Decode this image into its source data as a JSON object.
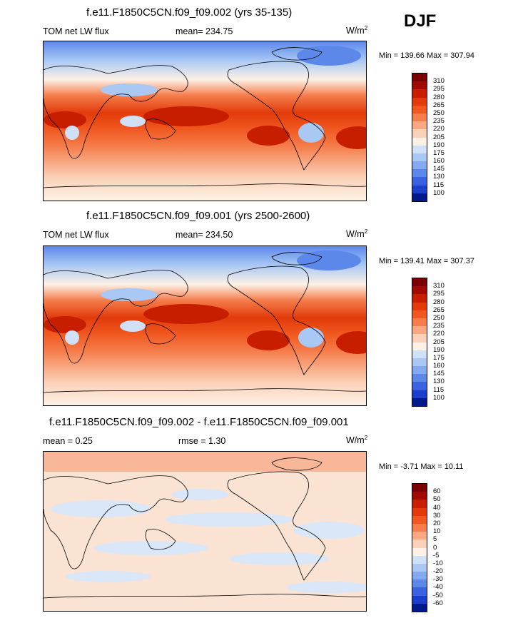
{
  "season": "DJF",
  "panels": [
    {
      "title": "f.e11.F1850C5CN.f09_f09.002 (yrs 35-135)",
      "left": "TOM net LW flux",
      "center": "mean= 234.75",
      "units_main": "W/m",
      "units_sup": "2",
      "minmax": "Min = 139.66 Max = 307.94",
      "labels": [
        "310",
        "295",
        "280",
        "265",
        "250",
        "235",
        "220",
        "205",
        "190",
        "175",
        "160",
        "145",
        "130",
        "115",
        "100"
      ],
      "colors": [
        "#7a0000",
        "#a00a00",
        "#c81e00",
        "#e23a0a",
        "#f0581f",
        "#f57d4b",
        "#f9a883",
        "#fbd2b9",
        "#fdf1e6",
        "#cfe0f7",
        "#a9c8f4",
        "#83aaf0",
        "#5c88ea",
        "#3a61e0",
        "#1b3ecb",
        "#001a8c"
      ]
    },
    {
      "title": "f.e11.F1850C5CN.f09_f09.001 (yrs 2500-2600)",
      "left": "TOM net LW flux",
      "center": "mean= 234.50",
      "units_main": "W/m",
      "units_sup": "2",
      "minmax": "Min = 139.41 Max = 307.37",
      "labels": [
        "310",
        "295",
        "280",
        "265",
        "250",
        "235",
        "220",
        "205",
        "190",
        "175",
        "160",
        "145",
        "130",
        "115",
        "100"
      ],
      "colors": [
        "#7a0000",
        "#a00a00",
        "#c81e00",
        "#e23a0a",
        "#f0581f",
        "#f57d4b",
        "#f9a883",
        "#fbd2b9",
        "#fdf1e6",
        "#cfe0f7",
        "#a9c8f4",
        "#83aaf0",
        "#5c88ea",
        "#3a61e0",
        "#1b3ecb",
        "#001a8c"
      ]
    },
    {
      "title": "f.e11.F1850C5CN.f09_f09.002 - f.e11.F1850C5CN.f09_f09.001",
      "left": "mean =   0.25",
      "center": "rmse =   1.30",
      "units_main": "W/m",
      "units_sup": "2",
      "minmax": "Min =  -3.71 Max =  10.11",
      "labels": [
        "60",
        "50",
        "40",
        "30",
        "20",
        "10",
        "5",
        "0",
        "-5",
        "-10",
        "-20",
        "-30",
        "-40",
        "-50",
        "-60"
      ],
      "colors": [
        "#7a0000",
        "#a00a00",
        "#c81e00",
        "#e23a0a",
        "#f0581f",
        "#f57d4b",
        "#f9a883",
        "#fbd2b9",
        "#fdf1e6",
        "#cfe0f7",
        "#a9c8f4",
        "#83aaf0",
        "#5c88ea",
        "#3a61e0",
        "#1b3ecb",
        "#001a8c"
      ]
    }
  ]
}
